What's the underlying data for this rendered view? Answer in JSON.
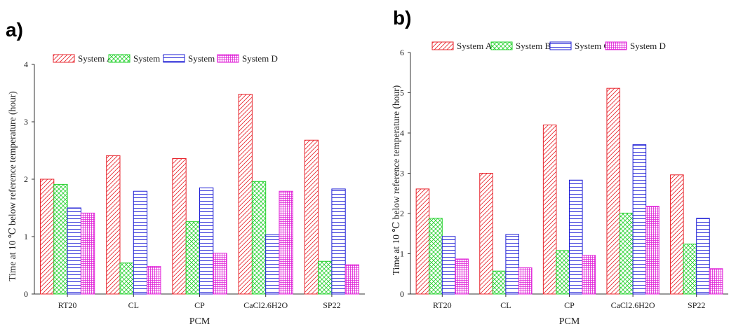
{
  "chart_data": [
    {
      "type": "bar",
      "panel_label": "a)",
      "categories": [
        "RT20",
        "CL",
        "CP",
        "CaCl2.6H2O",
        "SP22"
      ],
      "series": [
        {
          "name": "System A",
          "values": [
            2.0,
            2.41,
            2.36,
            3.48,
            2.68
          ]
        },
        {
          "name": "System B",
          "values": [
            1.91,
            0.54,
            1.26,
            1.96,
            0.57
          ]
        },
        {
          "name": "System C",
          "values": [
            1.5,
            1.79,
            1.85,
            1.03,
            1.83
          ]
        },
        {
          "name": "System D",
          "values": [
            1.41,
            0.48,
            0.71,
            1.79,
            0.51
          ]
        }
      ],
      "xlabel": "PCM",
      "ylabel": "Time at 10 ℃ below reference temperature (hour)",
      "ylim": [
        0,
        4
      ],
      "yticks": [
        0,
        1,
        2,
        3,
        4
      ],
      "grid": false,
      "legend": "top"
    },
    {
      "type": "bar",
      "panel_label": "b)",
      "categories": [
        "RT20",
        "CL",
        "CP",
        "CaCl2.6H2O",
        "SP22"
      ],
      "series": [
        {
          "name": "System A",
          "values": [
            2.61,
            3.0,
            4.2,
            5.11,
            2.96
          ]
        },
        {
          "name": "System B",
          "values": [
            1.88,
            0.57,
            1.08,
            2.01,
            1.24
          ]
        },
        {
          "name": "System C",
          "values": [
            1.43,
            1.48,
            2.83,
            3.71,
            1.88
          ]
        },
        {
          "name": "System D",
          "values": [
            0.87,
            0.65,
            0.96,
            2.18,
            0.63
          ]
        }
      ],
      "xlabel": "PCM",
      "ylabel": "Time at 10 ℃ below reference temperature (hour)",
      "ylim": [
        0,
        6
      ],
      "yticks": [
        0,
        1,
        2,
        3,
        4,
        5,
        6
      ],
      "grid": false,
      "legend": "top"
    }
  ],
  "styles": {
    "series": [
      {
        "color": "#e8242c",
        "pattern": "diagonal-hatch"
      },
      {
        "color": "#22d12b",
        "pattern": "cross-hatch"
      },
      {
        "color": "#1f1fd6",
        "pattern": "horizontal-lines"
      },
      {
        "color": "#e020d8",
        "pattern": "grid-mesh"
      }
    ]
  }
}
